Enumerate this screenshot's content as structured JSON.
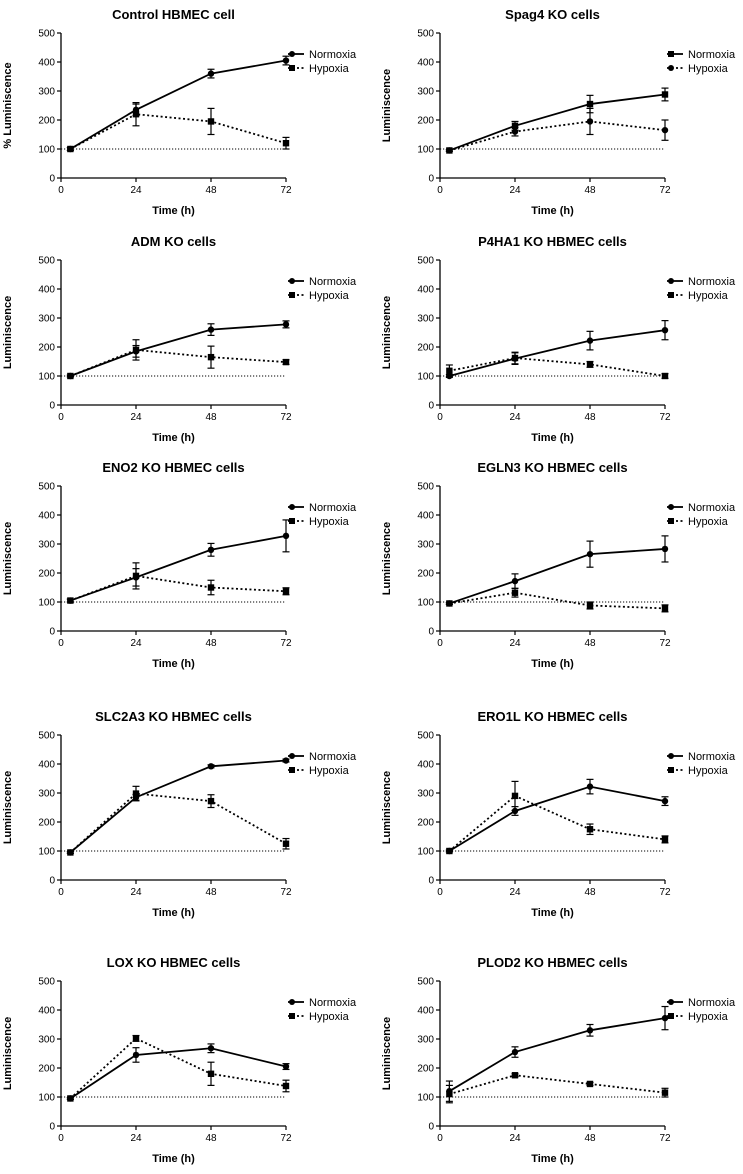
{
  "figure": {
    "normoxia_label": "Normoxia",
    "hypoxia_label": "Hypoxia",
    "x_ticks": [
      0,
      24,
      48,
      72
    ],
    "y_ticks": [
      0,
      100,
      200,
      300,
      400,
      500
    ],
    "baseline": 100
  },
  "chart_data": [
    {
      "type": "line",
      "title": "Control HBMEC cell",
      "xlabel": "Time (h)",
      "ylabel": "% Luminiscence",
      "xlim": [
        0,
        72
      ],
      "ylim": [
        0,
        500
      ],
      "x": [
        3,
        24,
        48,
        72
      ],
      "series": [
        {
          "name": "Normoxia",
          "marker": "circle",
          "style": "solid",
          "values": [
            100,
            235,
            360,
            405
          ],
          "errors": [
            5,
            20,
            15,
            15
          ]
        },
        {
          "name": "Hypoxia",
          "marker": "square",
          "style": "dotted",
          "values": [
            100,
            220,
            195,
            120
          ],
          "errors": [
            5,
            40,
            45,
            20
          ]
        }
      ],
      "legend_marker": {
        "Normoxia": "circle",
        "Hypoxia": "square"
      }
    },
    {
      "type": "line",
      "title": "Spag4 KO cells",
      "xlabel": "Time (h)",
      "ylabel": "Luminiscence",
      "xlim": [
        0,
        72
      ],
      "ylim": [
        0,
        500
      ],
      "x": [
        3,
        24,
        48,
        72
      ],
      "series": [
        {
          "name": "Normoxia",
          "marker": "square",
          "style": "solid",
          "values": [
            95,
            180,
            255,
            288
          ],
          "errors": [
            3,
            15,
            30,
            22
          ]
        },
        {
          "name": "Hypoxia",
          "marker": "circle",
          "style": "dotted",
          "values": [
            95,
            160,
            195,
            165
          ],
          "errors": [
            3,
            15,
            45,
            35
          ]
        }
      ],
      "legend_marker": {
        "Normoxia": "square",
        "Hypoxia": "circle"
      }
    },
    {
      "type": "line",
      "title": "ADM KO cells",
      "xlabel": "Time (h)",
      "ylabel": "Luminiscence",
      "xlim": [
        0,
        72
      ],
      "ylim": [
        0,
        500
      ],
      "x": [
        3,
        24,
        48,
        72
      ],
      "series": [
        {
          "name": "Normoxia",
          "marker": "circle",
          "style": "solid",
          "values": [
            100,
            185,
            260,
            278
          ],
          "errors": [
            3,
            20,
            20,
            12
          ]
        },
        {
          "name": "Hypoxia",
          "marker": "square",
          "style": "dotted",
          "values": [
            100,
            190,
            165,
            148
          ],
          "errors": [
            3,
            35,
            38,
            8
          ]
        }
      ],
      "legend_marker": {
        "Normoxia": "circle",
        "Hypoxia": "square"
      }
    },
    {
      "type": "line",
      "title": "P4HA1 KO HBMEC cells",
      "xlabel": "Time (h)",
      "ylabel": "Luminiscence",
      "xlim": [
        0,
        72
      ],
      "ylim": [
        0,
        500
      ],
      "x": [
        3,
        24,
        48,
        72
      ],
      "series": [
        {
          "name": "Normoxia",
          "marker": "circle",
          "style": "solid",
          "values": [
            100,
            160,
            222,
            258
          ],
          "errors": [
            5,
            20,
            32,
            33
          ]
        },
        {
          "name": "Hypoxia",
          "marker": "square",
          "style": "dotted",
          "values": [
            118,
            162,
            140,
            100
          ],
          "errors": [
            20,
            20,
            10,
            8
          ]
        }
      ],
      "legend_marker": {
        "Normoxia": "circle",
        "Hypoxia": "square"
      }
    },
    {
      "type": "line",
      "title": "ENO2 KO HBMEC cells",
      "xlabel": "Time (h)",
      "ylabel": "Luminiscence",
      "xlim": [
        0,
        72
      ],
      "ylim": [
        0,
        500
      ],
      "x": [
        3,
        24,
        48,
        72
      ],
      "series": [
        {
          "name": "Normoxia",
          "marker": "circle",
          "style": "solid",
          "values": [
            105,
            185,
            280,
            328
          ],
          "errors": [
            5,
            30,
            22,
            55
          ]
        },
        {
          "name": "Hypoxia",
          "marker": "square",
          "style": "dotted",
          "values": [
            105,
            190,
            150,
            137
          ],
          "errors": [
            5,
            45,
            25,
            12
          ]
        }
      ],
      "legend_marker": {
        "Normoxia": "circle",
        "Hypoxia": "square"
      }
    },
    {
      "type": "line",
      "title": "EGLN3 KO HBMEC cells",
      "xlabel": "Time (h)",
      "ylabel": "Luminiscence",
      "xlim": [
        0,
        72
      ],
      "ylim": [
        0,
        500
      ],
      "x": [
        3,
        24,
        48,
        72
      ],
      "series": [
        {
          "name": "Normoxia",
          "marker": "circle",
          "style": "solid",
          "values": [
            95,
            172,
            265,
            283
          ],
          "errors": [
            3,
            25,
            45,
            45
          ]
        },
        {
          "name": "Hypoxia",
          "marker": "square",
          "style": "dotted",
          "values": [
            95,
            132,
            88,
            78
          ],
          "errors": [
            3,
            15,
            12,
            12
          ]
        }
      ],
      "legend_marker": {
        "Normoxia": "circle",
        "Hypoxia": "square"
      }
    },
    {
      "type": "line",
      "title": "SLC2A3 KO HBMEC cells",
      "xlabel": "Time (h)",
      "ylabel": "Luminiscence",
      "xlim": [
        0,
        72
      ],
      "ylim": [
        0,
        500
      ],
      "x": [
        3,
        24,
        48,
        72
      ],
      "series": [
        {
          "name": "Normoxia",
          "marker": "circle",
          "style": "solid",
          "values": [
            95,
            285,
            392,
            412
          ],
          "errors": [
            3,
            10,
            5,
            5
          ]
        },
        {
          "name": "Hypoxia",
          "marker": "square",
          "style": "dotted",
          "values": [
            95,
            298,
            272,
            125
          ],
          "errors": [
            3,
            25,
            22,
            18
          ]
        }
      ],
      "legend_marker": {
        "Normoxia": "circle",
        "Hypoxia": "square"
      }
    },
    {
      "type": "line",
      "title": "ERO1L KO HBMEC cells",
      "xlabel": "Time (h)",
      "ylabel": "Luminiscence",
      "xlim": [
        0,
        72
      ],
      "ylim": [
        0,
        500
      ],
      "x": [
        3,
        24,
        48,
        72
      ],
      "series": [
        {
          "name": "Normoxia",
          "marker": "circle",
          "style": "solid",
          "values": [
            100,
            238,
            322,
            272
          ],
          "errors": [
            3,
            15,
            25,
            15
          ]
        },
        {
          "name": "Hypoxia",
          "marker": "square",
          "style": "dotted",
          "values": [
            100,
            290,
            175,
            140
          ],
          "errors": [
            3,
            50,
            18,
            12
          ]
        }
      ],
      "legend_marker": {
        "Normoxia": "circle",
        "Hypoxia": "square"
      }
    },
    {
      "type": "line",
      "title": "LOX KO HBMEC cells",
      "xlabel": "Time (h)",
      "ylabel": "Luminiscence",
      "xlim": [
        0,
        72
      ],
      "ylim": [
        0,
        500
      ],
      "x": [
        3,
        24,
        48,
        72
      ],
      "series": [
        {
          "name": "Normoxia",
          "marker": "circle",
          "style": "solid",
          "values": [
            95,
            245,
            268,
            205
          ],
          "errors": [
            3,
            25,
            15,
            10
          ]
        },
        {
          "name": "Hypoxia",
          "marker": "square",
          "style": "dotted",
          "values": [
            95,
            302,
            180,
            138
          ],
          "errors": [
            3,
            10,
            40,
            20
          ]
        }
      ],
      "legend_marker": {
        "Normoxia": "circle",
        "Hypoxia": "square"
      }
    },
    {
      "type": "line",
      "title": "PLOD2 KO HBMEC cells",
      "xlabel": "Time (h)",
      "ylabel": "Luminiscence",
      "xlim": [
        0,
        72
      ],
      "ylim": [
        0,
        500
      ],
      "x": [
        3,
        24,
        48,
        72
      ],
      "series": [
        {
          "name": "Normoxia",
          "marker": "circle",
          "style": "solid",
          "values": [
            120,
            255,
            330,
            372
          ],
          "errors": [
            35,
            18,
            20,
            40
          ]
        },
        {
          "name": "Hypoxia",
          "marker": "square",
          "style": "dotted",
          "values": [
            110,
            175,
            145,
            115
          ],
          "errors": [
            30,
            5,
            5,
            15
          ]
        }
      ],
      "legend_marker": {
        "Normoxia": "circle",
        "Hypoxia": "square"
      }
    }
  ]
}
